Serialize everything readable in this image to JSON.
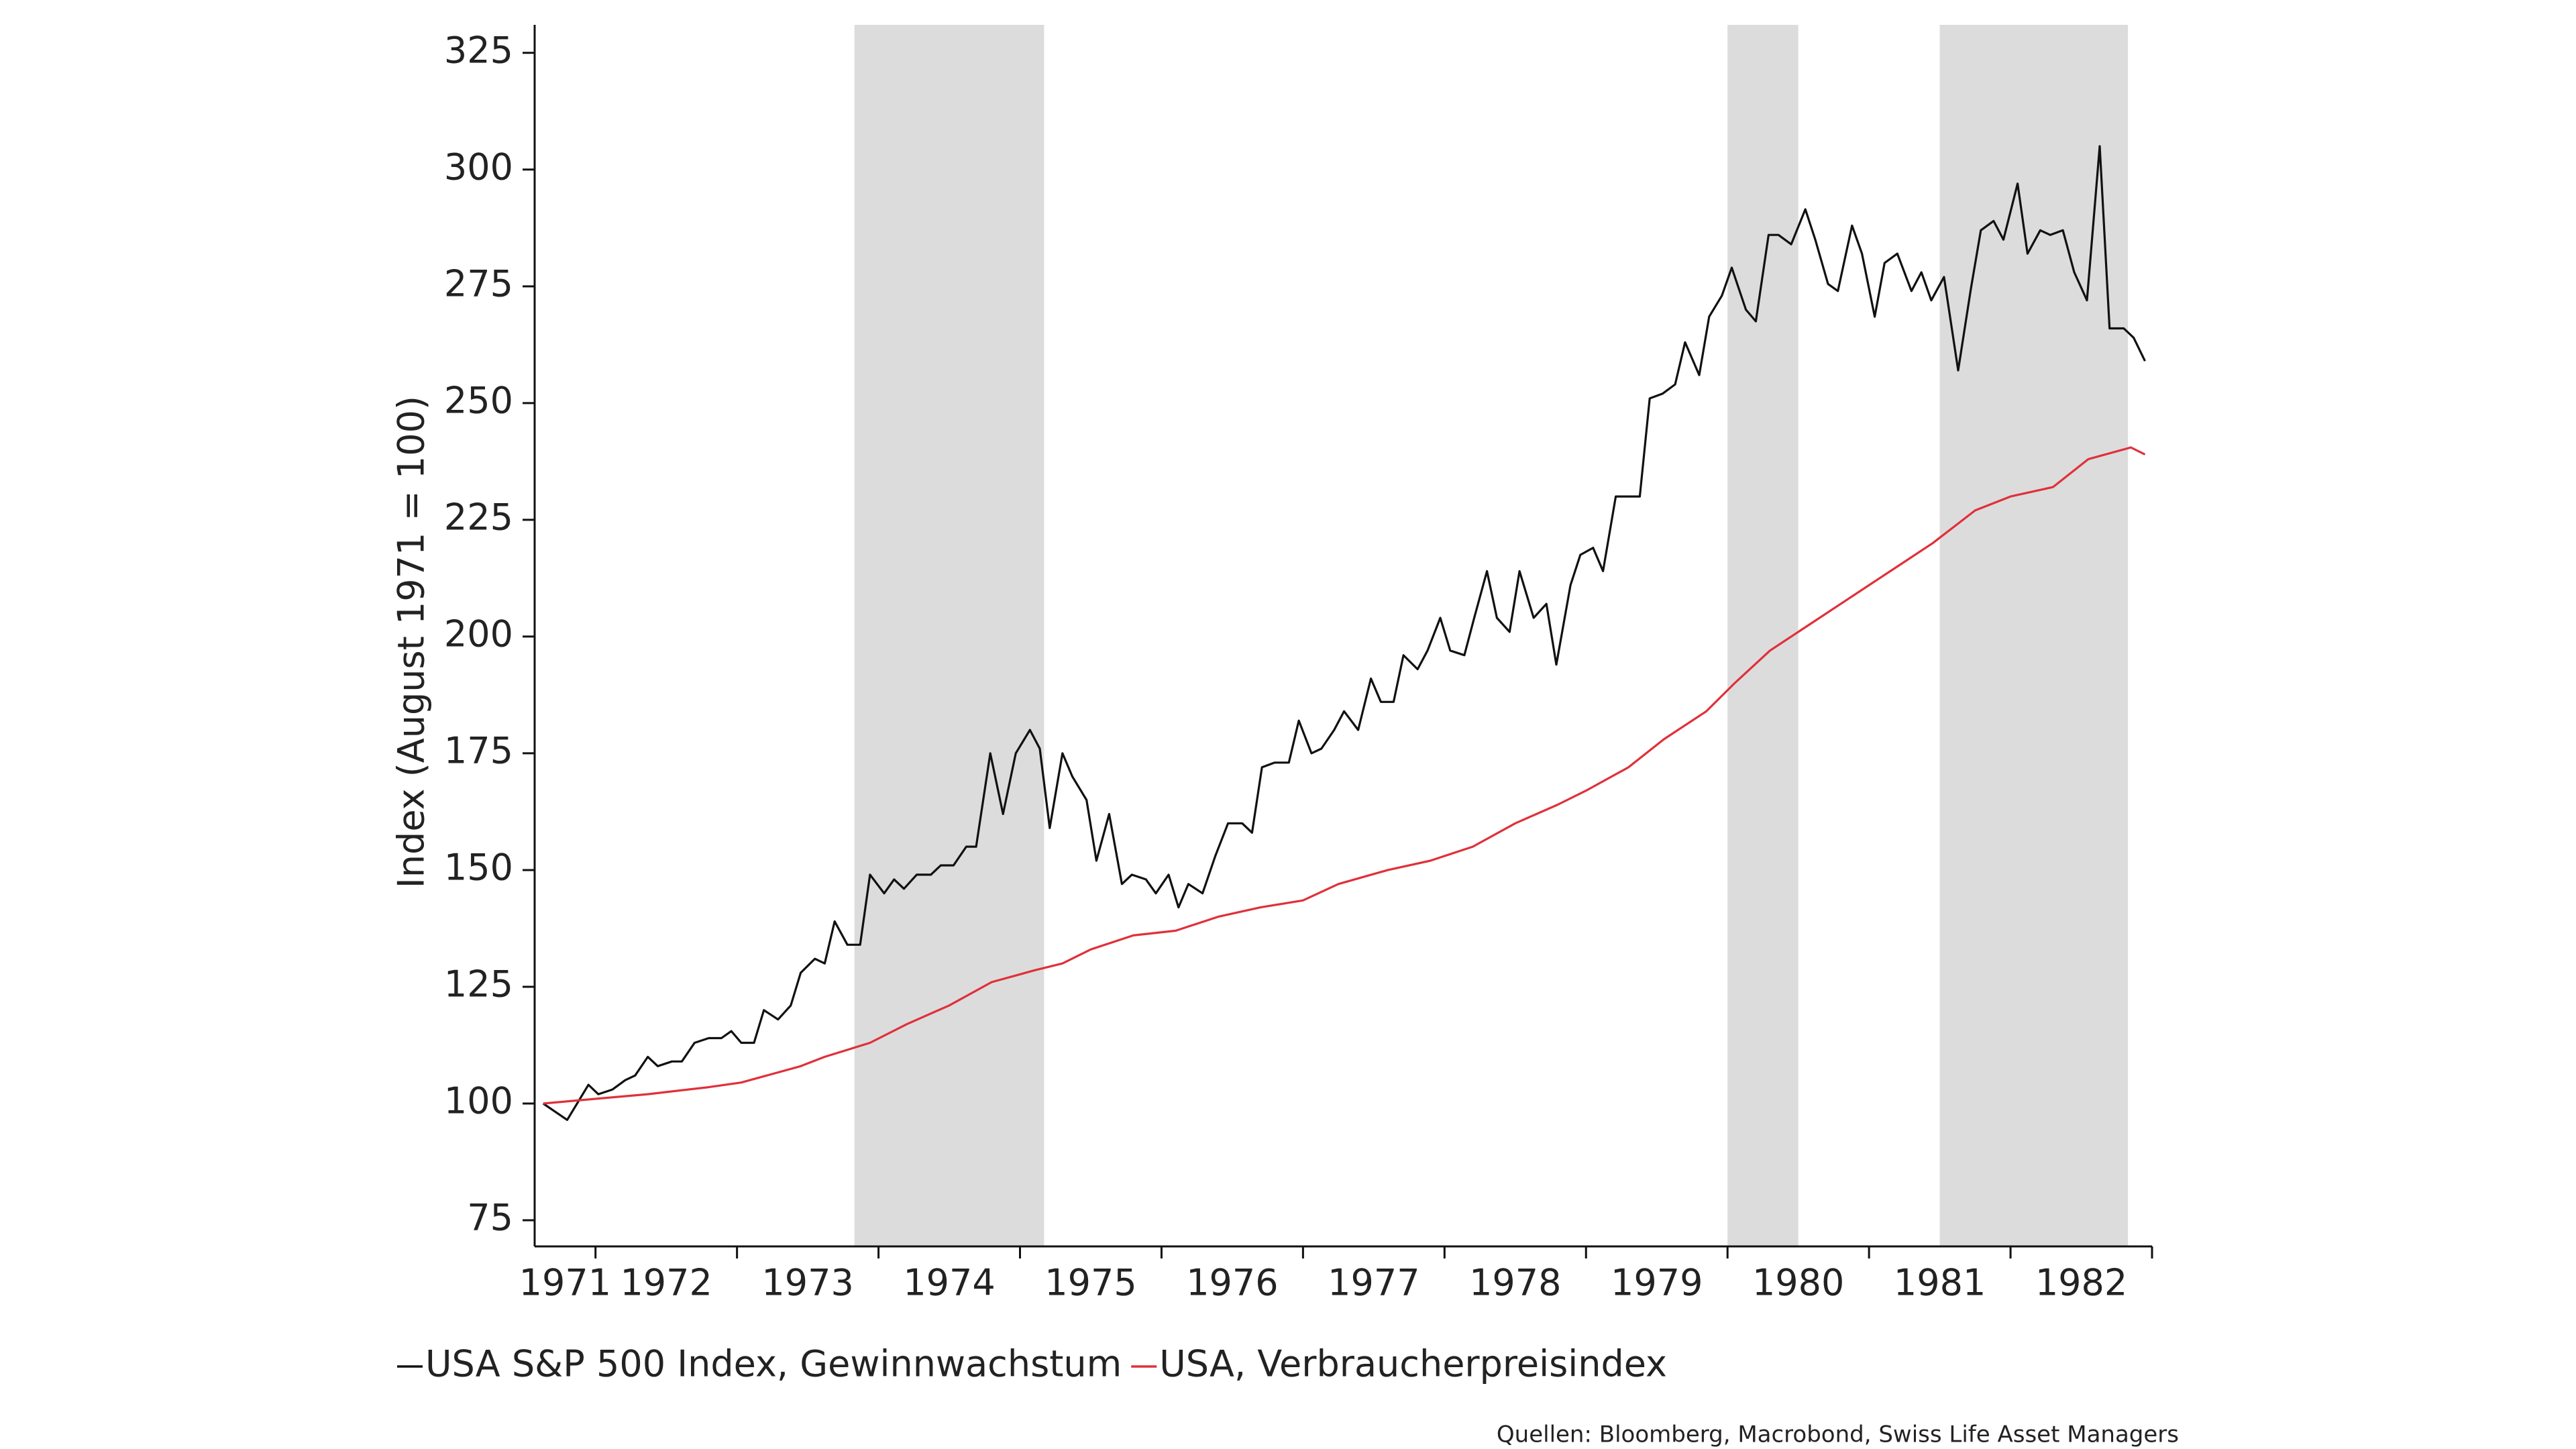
{
  "chart_data": {
    "type": "line",
    "y_label": "Index (August 1971 = 100)",
    "source": "Quellen: Bloomberg, Macrobond, Swiss Life Asset Managers",
    "xlim": [
      1971.57,
      1983.0
    ],
    "ylim": [
      69.4,
      331
    ],
    "yticks": [
      75,
      100,
      125,
      150,
      175,
      200,
      225,
      250,
      275,
      300,
      325
    ],
    "xticks": [
      1972,
      1973,
      1974,
      1975,
      1976,
      1977,
      1978,
      1979,
      1980,
      1981,
      1982,
      1983
    ],
    "xtick_labels": [
      "1971",
      "1972",
      "1973",
      "1974",
      "1975",
      "1976",
      "1977",
      "1978",
      "1979",
      "1980",
      "1981",
      "1982"
    ],
    "shading": [
      [
        1973.83,
        1975.17
      ],
      [
        1980.0,
        1980.5
      ],
      [
        1981.5,
        1982.83
      ]
    ],
    "shading_color": "#dcdcdc",
    "series": [
      {
        "name": "USA S&P 500 Index, Gewinnwachstum",
        "color": "#111111",
        "x": [
          1971.63,
          1971.8,
          1971.95,
          1972.02,
          1972.12,
          1972.21,
          1972.28,
          1972.37,
          1972.44,
          1972.54,
          1972.61,
          1972.7,
          1972.8,
          1972.89,
          1972.96,
          1973.03,
          1973.12,
          1973.19,
          1973.29,
          1973.38,
          1973.45,
          1973.55,
          1973.62,
          1973.69,
          1973.78,
          1973.87,
          1973.94,
          1974.04,
          1974.11,
          1974.18,
          1974.27,
          1974.37,
          1974.44,
          1974.53,
          1974.62,
          1974.69,
          1974.79,
          1974.88,
          1974.97,
          1975.07,
          1975.14,
          1975.21,
          1975.3,
          1975.37,
          1975.47,
          1975.54,
          1975.63,
          1975.72,
          1975.79,
          1975.89,
          1975.96,
          1976.05,
          1976.12,
          1976.19,
          1976.29,
          1976.38,
          1976.47,
          1976.57,
          1976.64,
          1976.71,
          1976.8,
          1976.9,
          1976.97,
          1977.06,
          1977.13,
          1977.22,
          1977.29,
          1977.39,
          1977.48,
          1977.55,
          1977.64,
          1977.71,
          1977.81,
          1977.88,
          1977.97,
          1978.04,
          1978.14,
          1978.21,
          1978.3,
          1978.37,
          1978.46,
          1978.53,
          1978.63,
          1978.72,
          1978.79,
          1978.89,
          1978.96,
          1979.05,
          1979.12,
          1979.21,
          1979.31,
          1979.38,
          1979.45,
          1979.54,
          1979.63,
          1979.7,
          1979.8,
          1979.87,
          1979.96,
          1980.03,
          1980.13,
          1980.2,
          1980.29,
          1980.36,
          1980.45,
          1980.55,
          1980.62,
          1980.71,
          1980.78,
          1980.88,
          1980.95,
          1981.04,
          1981.11,
          1981.2,
          1981.3,
          1981.37,
          1981.44,
          1981.53,
          1981.63,
          1981.72,
          1981.79,
          1981.88,
          1981.95,
          1982.05,
          1982.12,
          1982.21,
          1982.28,
          1982.37,
          1982.45,
          1982.54,
          1982.63,
          1982.7,
          1982.8,
          1982.87,
          1982.95
        ],
        "values": [
          100,
          96.5,
          104,
          102,
          103,
          105,
          106,
          110,
          108,
          109,
          109,
          113,
          114,
          114,
          115.5,
          113,
          113,
          120,
          118,
          121,
          128,
          131,
          130,
          139,
          134,
          134,
          149,
          145,
          148,
          146,
          149,
          149,
          151,
          151,
          155,
          155,
          175,
          162,
          175,
          180,
          176,
          159,
          175,
          170,
          165,
          152,
          162,
          147,
          149,
          148,
          145,
          149,
          142,
          147,
          145,
          153,
          160,
          160,
          158,
          172,
          173,
          173,
          182,
          175,
          176,
          180,
          184,
          180,
          191,
          186,
          186,
          196,
          193,
          197,
          204,
          197,
          196,
          204,
          214,
          204,
          201,
          214,
          204,
          207,
          194,
          211,
          217.5,
          219,
          214,
          230,
          230,
          230,
          251,
          252,
          254,
          263,
          256,
          268.5,
          273,
          279,
          270,
          267.5,
          286,
          286,
          284,
          291.5,
          285,
          275.5,
          274,
          288,
          282,
          268.5,
          280,
          282,
          274,
          278,
          272,
          277,
          257,
          274.5,
          287,
          289,
          285,
          297,
          282,
          287,
          286,
          287,
          278,
          272,
          305,
          266,
          266,
          264,
          259
        ]
      },
      {
        "name": "USA, Verbraucherpreisindex",
        "color": "#e0303a",
        "x": [
          1971.63,
          1972.0,
          1972.37,
          1972.8,
          1973.03,
          1973.45,
          1973.62,
          1973.94,
          1974.2,
          1974.5,
          1974.8,
          1975.1,
          1975.3,
          1975.5,
          1975.8,
          1976.1,
          1976.4,
          1976.7,
          1977.0,
          1977.25,
          1977.6,
          1977.9,
          1978.2,
          1978.5,
          1978.8,
          1979.0,
          1979.3,
          1979.55,
          1979.85,
          1980.05,
          1980.3,
          1980.55,
          1980.85,
          1981.2,
          1981.45,
          1981.75,
          1982.0,
          1982.3,
          1982.55,
          1982.85,
          1982.95
        ],
        "values": [
          100,
          101,
          102,
          103.5,
          104.5,
          108,
          110,
          113,
          117,
          121,
          126,
          128.5,
          130,
          133,
          136,
          137,
          140,
          142,
          143.5,
          147,
          150,
          152,
          155,
          160,
          164,
          167,
          172,
          178,
          184,
          190,
          197,
          202,
          208,
          215,
          220,
          227,
          230,
          232,
          238,
          240.5,
          239
        ]
      }
    ]
  }
}
